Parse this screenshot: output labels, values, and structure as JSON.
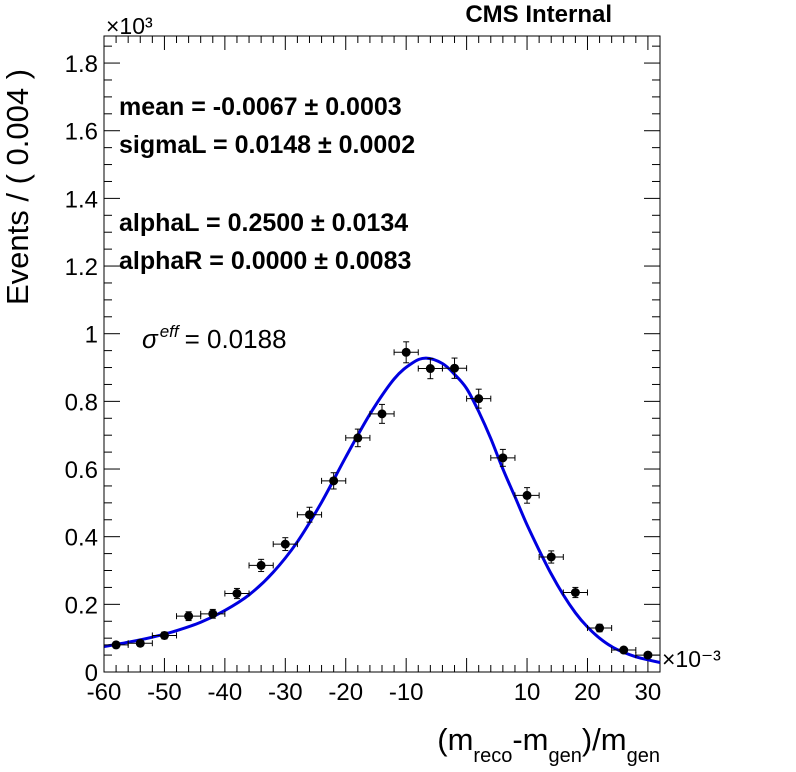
{
  "chart_data": {
    "type": "scatter",
    "title": "CMS Internal",
    "xlabel": {
      "parts": [
        "(m",
        "reco",
        "-m",
        "gen",
        ")/m",
        "gen"
      ]
    },
    "ylabel": "Events / ( 0.004 )",
    "x_multiplier": "×10⁻³",
    "y_multiplier": "×10³",
    "xlim": [
      -60,
      32
    ],
    "ylim": [
      0,
      1.88
    ],
    "x_ticks": [
      -60,
      -50,
      -40,
      -30,
      -20,
      -10,
      10,
      20,
      30
    ],
    "x_tick_labels": [
      "-60",
      "-50",
      "-40",
      "-30",
      "-20",
      "-10",
      "10",
      "20",
      "30"
    ],
    "y_ticks": [
      0,
      0.2,
      0.4,
      0.6,
      0.8,
      1,
      1.2,
      1.4,
      1.6,
      1.8
    ],
    "y_tick_labels": [
      "0",
      "0.2",
      "0.4",
      "0.6",
      "0.8",
      "1",
      "1.2",
      "1.4",
      "1.6",
      "1.8"
    ],
    "annotations": [
      "mean = -0.0067 ± 0.0003",
      "sigmaL = 0.0148 ± 0.0002",
      "alphaL = 0.2500 ± 0.0134",
      "alphaR = 0.0000 ± 0.0083"
    ],
    "sigma_eff": {
      "symbol": "σ",
      "superscript": "eff",
      "value": "= 0.0188"
    },
    "data_points": {
      "bin_half_width": 2,
      "x": [
        -58,
        -54,
        -50,
        -46,
        -42,
        -38,
        -34,
        -30,
        -26,
        -22,
        -18,
        -14,
        -10,
        -6,
        -2,
        2,
        6,
        10,
        14,
        18,
        22,
        26,
        30
      ],
      "y": [
        0.08,
        0.085,
        0.108,
        0.165,
        0.172,
        0.232,
        0.315,
        0.378,
        0.465,
        0.565,
        0.692,
        0.763,
        0.945,
        0.897,
        0.898,
        0.808,
        0.633,
        0.522,
        0.34,
        0.235,
        0.13,
        0.065,
        0.05
      ],
      "err": [
        0.009,
        0.009,
        0.01,
        0.013,
        0.013,
        0.015,
        0.018,
        0.019,
        0.022,
        0.024,
        0.026,
        0.028,
        0.031,
        0.03,
        0.03,
        0.028,
        0.025,
        0.023,
        0.018,
        0.015,
        0.011,
        0.008,
        0.007
      ],
      "color": "#000000"
    },
    "fit_curve": {
      "color": "#0000e0",
      "x": [
        -60,
        -56,
        -52,
        -48,
        -44,
        -40,
        -36,
        -32,
        -28,
        -24,
        -20,
        -16,
        -12,
        -9,
        -6.7,
        -4,
        -2,
        0,
        2,
        4,
        6,
        8,
        10,
        12,
        14,
        16,
        18,
        20,
        22,
        24,
        26,
        28,
        30,
        32
      ],
      "y": [
        0.075,
        0.088,
        0.103,
        0.122,
        0.147,
        0.182,
        0.228,
        0.295,
        0.385,
        0.502,
        0.635,
        0.762,
        0.866,
        0.913,
        0.928,
        0.912,
        0.88,
        0.838,
        0.77,
        0.69,
        0.6,
        0.518,
        0.435,
        0.36,
        0.29,
        0.228,
        0.175,
        0.133,
        0.1,
        0.075,
        0.058,
        0.045,
        0.036,
        0.028
      ]
    },
    "grid": false,
    "legend": "none"
  }
}
